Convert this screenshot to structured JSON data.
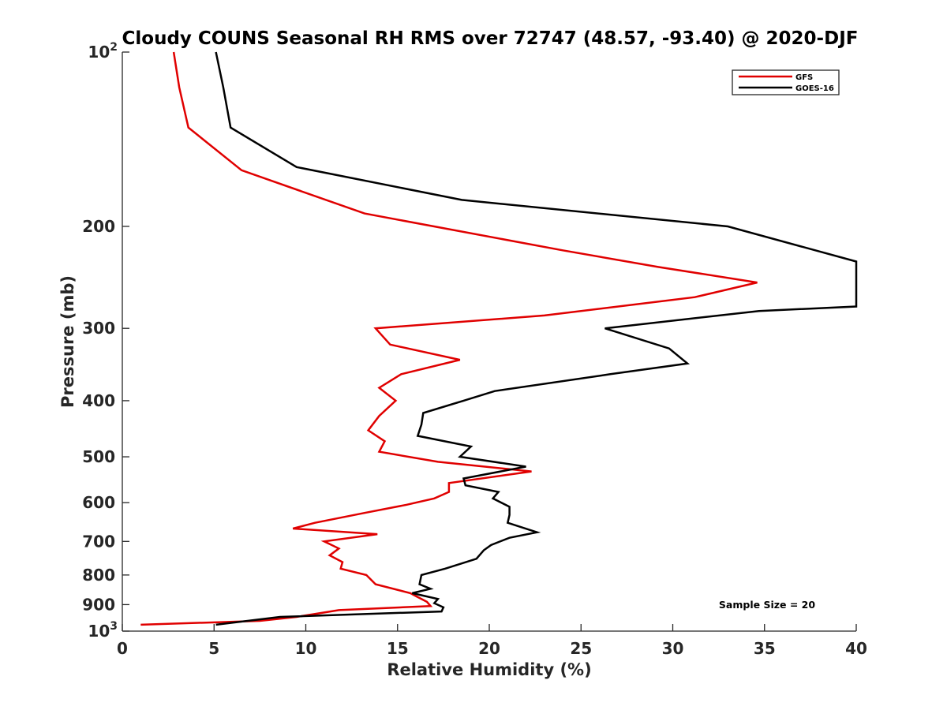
{
  "chart_data": {
    "type": "line",
    "title": "Cloudy COUNS Seasonal RH RMS over 72747 (48.57, -93.40) @ 2020-DJF",
    "xlabel": "Relative Humidity (%)",
    "ylabel": "Pressure (mb)",
    "xlim": [
      0,
      40
    ],
    "ylim": [
      100,
      1000
    ],
    "yscale": "log",
    "y_reversed": true,
    "x_ticks": [
      "0",
      "5",
      "10",
      "15",
      "20",
      "25",
      "30",
      "35",
      "40"
    ],
    "y_ticks": [
      {
        "value": 100,
        "base": "10",
        "exp": "2"
      },
      {
        "value": 200,
        "label": "200"
      },
      {
        "value": 300,
        "label": "300"
      },
      {
        "value": 400,
        "label": "400"
      },
      {
        "value": 500,
        "label": "500"
      },
      {
        "value": 600,
        "label": "600"
      },
      {
        "value": 700,
        "label": "700"
      },
      {
        "value": 800,
        "label": "800"
      },
      {
        "value": 900,
        "label": "900"
      },
      {
        "value": 1000,
        "base": "10",
        "exp": "3"
      }
    ],
    "legend_position": "top-right",
    "annotation": "Sample Size = 20",
    "series": [
      {
        "name": "GFS",
        "color": "#e00000",
        "points": [
          [
            2.8,
            100
          ],
          [
            3.1,
            115
          ],
          [
            3.6,
            135
          ],
          [
            6.5,
            160
          ],
          [
            13.2,
            190
          ],
          [
            24.0,
            220
          ],
          [
            29.2,
            235
          ],
          [
            34.6,
            250
          ],
          [
            31.2,
            265
          ],
          [
            23.0,
            285
          ],
          [
            13.8,
            300
          ],
          [
            14.6,
            320
          ],
          [
            18.4,
            340
          ],
          [
            15.2,
            360
          ],
          [
            14.0,
            380
          ],
          [
            14.9,
            400
          ],
          [
            14.0,
            425
          ],
          [
            13.4,
            450
          ],
          [
            14.3,
            470
          ],
          [
            14.0,
            490
          ],
          [
            17.2,
            510
          ],
          [
            22.3,
            530
          ],
          [
            17.8,
            555
          ],
          [
            17.8,
            575
          ],
          [
            17.0,
            590
          ],
          [
            15.5,
            605
          ],
          [
            13.2,
            625
          ],
          [
            10.5,
            650
          ],
          [
            9.3,
            665
          ],
          [
            13.9,
            680
          ],
          [
            11.0,
            700
          ],
          [
            11.8,
            720
          ],
          [
            11.3,
            740
          ],
          [
            12.0,
            760
          ],
          [
            11.9,
            780
          ],
          [
            13.3,
            800
          ],
          [
            13.8,
            830
          ],
          [
            15.7,
            860
          ],
          [
            16.0,
            870
          ],
          [
            16.6,
            890
          ],
          [
            16.8,
            905
          ],
          [
            11.8,
            920
          ],
          [
            9.5,
            945
          ],
          [
            7.5,
            960
          ],
          [
            1.0,
            975
          ]
        ]
      },
      {
        "name": "GOES-16",
        "color": "#000000",
        "points": [
          [
            5.1,
            100
          ],
          [
            5.5,
            115
          ],
          [
            5.9,
            135
          ],
          [
            9.5,
            158
          ],
          [
            18.5,
            180
          ],
          [
            33.0,
            200
          ],
          [
            40.0,
            230
          ],
          [
            40.0,
            275
          ],
          [
            34.7,
            280
          ],
          [
            26.3,
            300
          ],
          [
            29.8,
            325
          ],
          [
            30.8,
            345
          ],
          [
            26.6,
            360
          ],
          [
            20.3,
            385
          ],
          [
            18.6,
            400
          ],
          [
            16.4,
            420
          ],
          [
            16.3,
            440
          ],
          [
            16.1,
            460
          ],
          [
            19.0,
            480
          ],
          [
            18.4,
            500
          ],
          [
            22.0,
            520
          ],
          [
            18.6,
            545
          ],
          [
            18.7,
            560
          ],
          [
            20.5,
            575
          ],
          [
            20.2,
            590
          ],
          [
            21.1,
            610
          ],
          [
            21.1,
            630
          ],
          [
            21.0,
            650
          ],
          [
            22.6,
            675
          ],
          [
            21.1,
            690
          ],
          [
            20.1,
            710
          ],
          [
            19.7,
            725
          ],
          [
            19.3,
            750
          ],
          [
            17.6,
            780
          ],
          [
            16.3,
            800
          ],
          [
            16.2,
            830
          ],
          [
            16.8,
            845
          ],
          [
            15.8,
            860
          ],
          [
            17.2,
            880
          ],
          [
            17.0,
            895
          ],
          [
            17.5,
            910
          ],
          [
            17.4,
            925
          ],
          [
            8.6,
            945
          ],
          [
            5.1,
            975
          ]
        ]
      }
    ]
  }
}
